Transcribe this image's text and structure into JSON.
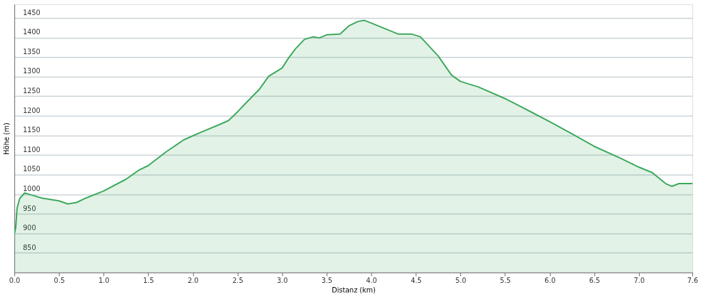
{
  "chart_data": {
    "type": "area",
    "xlabel": "Distanz  (km)",
    "ylabel": "Höhe (m)",
    "x": [
      0,
      0.015,
      0.03,
      0.06,
      0.115,
      0.19,
      0.31,
      0.5,
      0.6,
      0.7,
      0.8,
      1.0,
      1.25,
      1.4,
      1.5,
      1.7,
      1.9,
      2.1,
      2.3,
      2.4,
      2.5,
      2.6,
      2.75,
      2.85,
      2.95,
      3.0,
      3.08,
      3.15,
      3.25,
      3.35,
      3.42,
      3.5,
      3.65,
      3.75,
      3.85,
      3.92,
      4.0,
      4.15,
      4.3,
      4.45,
      4.55,
      4.75,
      4.9,
      5.0,
      5.2,
      5.5,
      5.8,
      6.0,
      6.25,
      6.5,
      6.8,
      7.0,
      7.15,
      7.3,
      7.37,
      7.45,
      7.6
    ],
    "series": [
      {
        "color": "#3aa85a",
        "values": [
          898,
          915,
          964,
          989,
          1003,
          998,
          990,
          983,
          975,
          979,
          990,
          1008,
          1038,
          1062,
          1073,
          1108,
          1139,
          1159,
          1178,
          1188,
          1210,
          1234,
          1269,
          1301,
          1315,
          1322,
          1350,
          1371,
          1395,
          1402,
          1399,
          1407,
          1409,
          1430,
          1441,
          1444,
          1437,
          1423,
          1409,
          1409,
          1402,
          1353,
          1304,
          1288,
          1274,
          1244,
          1209,
          1185,
          1154,
          1122,
          1091,
          1069,
          1055,
          1027,
          1020,
          1027,
          1027
        ]
      }
    ],
    "xlim": [
      0,
      7.6
    ],
    "xticks": [
      {
        "value": 0,
        "label": "0.0"
      },
      0.5,
      {
        "value": 1,
        "label": "1.0"
      },
      1.5,
      {
        "value": 2,
        "label": "2.0"
      },
      2.5,
      {
        "value": 3,
        "label": "3.0"
      },
      3.5,
      {
        "value": 4,
        "label": "4.0"
      },
      4.5,
      {
        "value": 5,
        "label": "5.0"
      },
      5.5,
      {
        "value": 6,
        "label": "6.0"
      },
      6.5,
      {
        "value": 7,
        "label": "7.0"
      },
      7.6
    ],
    "ylim": [
      800,
      1485
    ],
    "yticks": [
      850,
      900,
      950,
      1000,
      1050,
      1100,
      1150,
      1200,
      1250,
      1300,
      1350,
      1400,
      1450
    ],
    "grid": "y",
    "line_style": "solid",
    "marker": "none"
  }
}
